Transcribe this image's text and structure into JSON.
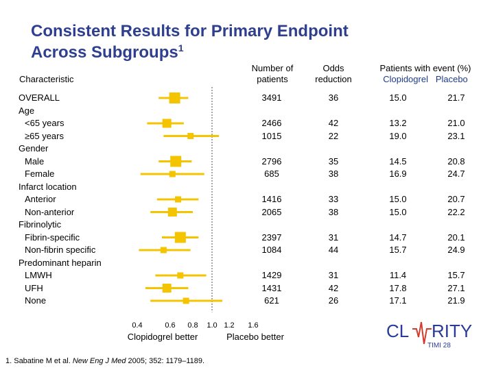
{
  "title_line1": "Consistent Results for Primary Endpoint",
  "title_line2": "Across Subgroups",
  "title_sup": "1",
  "headers": {
    "characteristic": "Characteristic",
    "n_line1": "Number of",
    "n_line2": "patients",
    "or_line1": "Odds",
    "or_line2": "reduction",
    "ev_line1": "Patients with event (%)",
    "ev_clop": "Clopidogrel",
    "ev_plac": "Placebo"
  },
  "chart_data": {
    "type": "scatter",
    "x_ticks": [
      "0.4",
      "0.6",
      "0.8",
      "1.0",
      "1.2",
      "1.6"
    ],
    "x_range": [
      0.4,
      1.6
    ],
    "reference_line": 1.0,
    "xlabel_left": "Clopidogrel better",
    "xlabel_right": "Placebo better",
    "series": [
      {
        "label": "OVERALL",
        "or": 0.64,
        "ci": [
          0.53,
          0.76
        ],
        "n": "3491",
        "reduction": "36",
        "clop": "15.0",
        "plac": "21.7",
        "size": "large"
      },
      {
        "label": "Age",
        "header": true
      },
      {
        "label": "<65 years",
        "or": 0.58,
        "ci": [
          0.46,
          0.72
        ],
        "n": "2466",
        "reduction": "42",
        "clop": "13.2",
        "plac": "21.0",
        "size": "medium"
      },
      {
        "label": "≥65 years",
        "or": 0.78,
        "ci": [
          0.56,
          1.08
        ],
        "n": "1015",
        "reduction": "22",
        "clop": "19.0",
        "plac": "23.1",
        "size": "small"
      },
      {
        "label": "Gender",
        "header": true
      },
      {
        "label": "Male",
        "or": 0.65,
        "ci": [
          0.53,
          0.79
        ],
        "n": "2796",
        "reduction": "35",
        "clop": "14.5",
        "plac": "20.8",
        "size": "large"
      },
      {
        "label": "Female",
        "or": 0.62,
        "ci": [
          0.42,
          0.92
        ],
        "n": "685",
        "reduction": "38",
        "clop": "16.9",
        "plac": "24.7",
        "size": "small"
      },
      {
        "label": "Infarct location",
        "header": true
      },
      {
        "label": "Anterior",
        "or": 0.67,
        "ci": [
          0.52,
          0.86
        ],
        "n": "1416",
        "reduction": "33",
        "clop": "15.0",
        "plac": "20.7",
        "size": "small"
      },
      {
        "label": "Non-anterior",
        "or": 0.62,
        "ci": [
          0.48,
          0.8
        ],
        "n": "2065",
        "reduction": "38",
        "clop": "15.0",
        "plac": "22.2",
        "size": "medium"
      },
      {
        "label": "Fibrinolytic",
        "header": true
      },
      {
        "label": "Fibrin-specific",
        "or": 0.69,
        "ci": [
          0.55,
          0.86
        ],
        "n": "2397",
        "reduction": "31",
        "clop": "14.7",
        "plac": "20.1",
        "size": "large"
      },
      {
        "label": "Non-fibrin specific",
        "or": 0.56,
        "ci": [
          0.41,
          0.78
        ],
        "n": "1084",
        "reduction": "44",
        "clop": "15.7",
        "plac": "24.9",
        "size": "small"
      },
      {
        "label": "Predominant heparin",
        "header": true
      },
      {
        "label": "LMWH",
        "or": 0.69,
        "ci": [
          0.51,
          0.94
        ],
        "n": "1429",
        "reduction": "31",
        "clop": "11.4",
        "plac": "15.7",
        "size": "small"
      },
      {
        "label": "UFH",
        "or": 0.58,
        "ci": [
          0.45,
          0.76
        ],
        "n": "1431",
        "reduction": "42",
        "clop": "17.8",
        "plac": "27.1",
        "size": "medium"
      },
      {
        "label": "None",
        "or": 0.74,
        "ci": [
          0.48,
          1.12
        ],
        "n": "621",
        "reduction": "26",
        "clop": "17.1",
        "plac": "21.9",
        "size": "small"
      }
    ]
  },
  "footnote": {
    "prefix": "1. Sabatine M et al. ",
    "journal": "New Eng J Med",
    "suffix": " 2005; 352: 1179–1189."
  },
  "logo": {
    "text_left": "CL",
    "text_right": "RITY",
    "sub": "TIMI 28",
    "color": "#2a3a9a",
    "accent": "#d43a2a"
  },
  "colors": {
    "title": "#2f3f8f",
    "marker": "#f5c400",
    "ref_line": "#888888"
  }
}
